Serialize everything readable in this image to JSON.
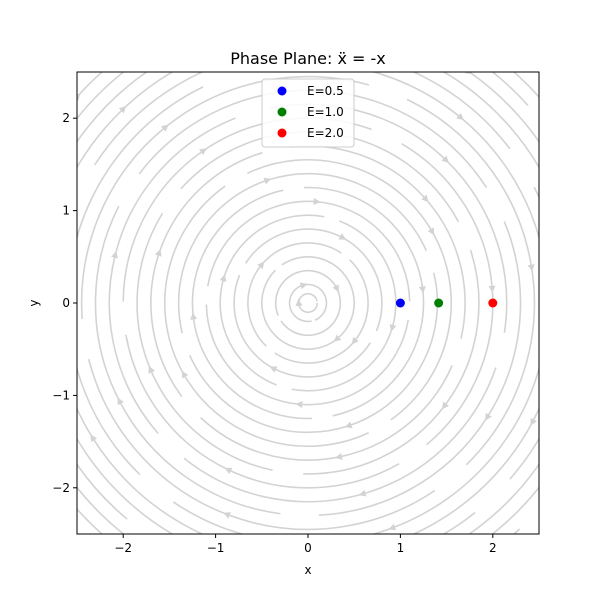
{
  "chart_data": {
    "type": "scatter",
    "title": "Phase Plane: ẍ = -x",
    "xlabel": "x",
    "ylabel": "y",
    "xlim": [
      -2.5,
      2.5
    ],
    "ylim": [
      -2.5,
      2.5
    ],
    "xticks": [
      -2,
      -1,
      0,
      1,
      2
    ],
    "yticks": [
      -2,
      -1,
      0,
      1,
      2
    ],
    "tick_labels_x": [
      "−2",
      "−1",
      "0",
      "1",
      "2"
    ],
    "tick_labels_y": [
      "−2",
      "−1",
      "0",
      "1",
      "2"
    ],
    "grid": false,
    "legend_position": "top-center",
    "streamlines": {
      "color": "#d3d3d3",
      "field": "dx/dt = y, dy/dt = -x",
      "radii": [
        0.1,
        0.2,
        0.35,
        0.5,
        0.65,
        0.8,
        0.95,
        1.1,
        1.25,
        1.4,
        1.55,
        1.7,
        1.85,
        2.0,
        2.15,
        2.3,
        2.45,
        2.6,
        2.75,
        2.9,
        3.05,
        3.2,
        3.35
      ]
    },
    "series": [
      {
        "name": "E=0.5",
        "color": "#0000ff",
        "x": 1.0,
        "y": 0.0
      },
      {
        "name": "E=1.0",
        "color": "#008000",
        "x": 1.414,
        "y": 0.0
      },
      {
        "name": "E=2.0",
        "color": "#ff0000",
        "x": 2.0,
        "y": 0.0
      }
    ]
  }
}
